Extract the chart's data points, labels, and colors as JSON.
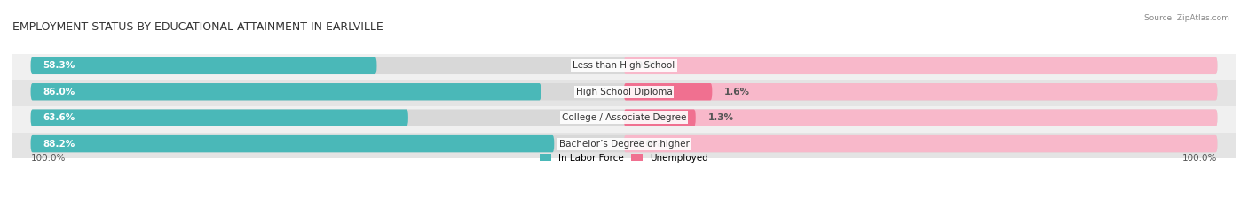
{
  "title": "EMPLOYMENT STATUS BY EDUCATIONAL ATTAINMENT IN EARLVILLE",
  "source": "Source: ZipAtlas.com",
  "categories": [
    "Less than High School",
    "High School Diploma",
    "College / Associate Degree",
    "Bachelor’s Degree or higher"
  ],
  "labor_force": [
    58.3,
    86.0,
    63.6,
    88.2
  ],
  "unemployed": [
    0.0,
    1.6,
    1.3,
    0.0
  ],
  "labor_force_color": "#4ab8b8",
  "unemployed_color": "#f07090",
  "unemployed_color_light": "#f8b8ca",
  "bg_color": "#ffffff",
  "row_bg_even": "#f0f0f0",
  "row_bg_odd": "#e4e4e4",
  "legend_labor": "In Labor Force",
  "legend_unemployed": "Unemployed",
  "left_label": "100.0%",
  "right_label": "100.0%",
  "title_fontsize": 9,
  "source_fontsize": 6.5,
  "label_fontsize": 7.5,
  "bar_label_fontsize": 7.5,
  "category_fontsize": 7.5,
  "figsize": [
    14.06,
    2.33
  ],
  "dpi": 100
}
